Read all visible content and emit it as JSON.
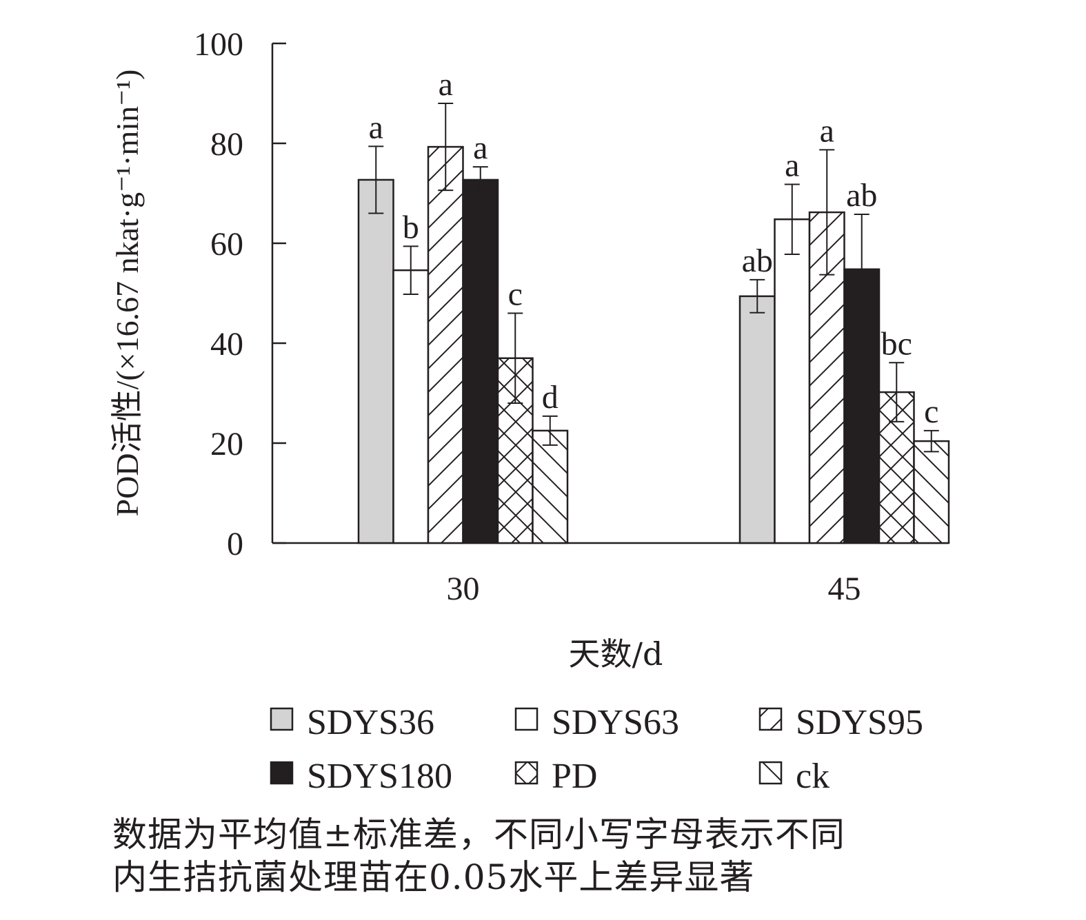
{
  "chart_data": {
    "type": "bar",
    "title": "",
    "xlabel": "天数/d",
    "ylabel": "POD活性/(×16.67 nkat·g⁻¹·min⁻¹)",
    "ylim": [
      0,
      100
    ],
    "yticks": [
      0,
      20,
      40,
      60,
      80,
      100
    ],
    "categories": [
      "30",
      "45"
    ],
    "legend_position": "bottom",
    "series": [
      {
        "name": "SDYS36",
        "fill": "#d3d3d3",
        "pattern": "solid",
        "values": [
          72.7,
          49.4
        ],
        "errors": [
          6.7,
          3.3
        ],
        "letters": [
          "a",
          "ab"
        ]
      },
      {
        "name": "SDYS63",
        "fill": "#ffffff",
        "pattern": "solid",
        "values": [
          54.6,
          64.8
        ],
        "errors": [
          4.8,
          7.0
        ],
        "letters": [
          "b",
          "a"
        ]
      },
      {
        "name": "SDYS95",
        "fill": "#ffffff",
        "pattern": "forward-diagonal",
        "values": [
          79.3,
          66.2
        ],
        "errors": [
          8.7,
          12.5
        ],
        "letters": [
          "a",
          "a"
        ]
      },
      {
        "name": "SDYS180",
        "fill": "#231f20",
        "pattern": "solid",
        "values": [
          72.7,
          54.8
        ],
        "errors": [
          2.6,
          11.0
        ],
        "letters": [
          "a",
          "ab"
        ]
      },
      {
        "name": "PD",
        "fill": "#ffffff",
        "pattern": "crosshatch",
        "values": [
          37.0,
          30.2
        ],
        "errors": [
          9.0,
          5.9
        ],
        "letters": [
          "c",
          "bc"
        ]
      },
      {
        "name": "ck",
        "fill": "#ffffff",
        "pattern": "back-diagonal",
        "values": [
          22.5,
          20.4
        ],
        "errors": [
          2.9,
          2.1
        ],
        "letters": [
          "d",
          "c"
        ]
      }
    ]
  },
  "caption": {
    "line1": "数据为平均值±标准差，不同小写字母表示不同",
    "line2": "内生拮抗菌处理苗在0.05水平上差异显著"
  }
}
